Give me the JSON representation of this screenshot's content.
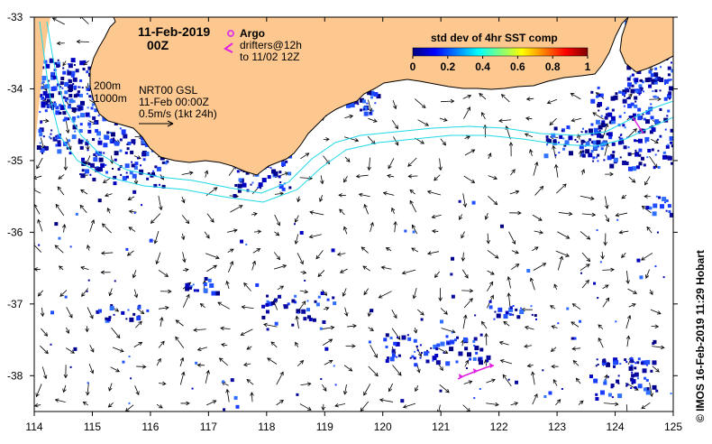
{
  "title": {
    "date": "11-Feb-2019",
    "time": "00Z"
  },
  "legend": {
    "argo_label": "Argo",
    "argo_color": "#e040e0",
    "drifters_line1": "drifters@12h",
    "drifters_line2": "to 11/02 12Z",
    "drifters_color": "#e020e0",
    "isobath_200": "200m",
    "isobath_1000": "1000m",
    "isobath_color": "#20d8e8",
    "product": "NRT00 GSL",
    "product_time": "11-Feb 00:00Z",
    "vector_scale": "0.5m/s (1kt 24h)"
  },
  "colorbar": {
    "title": "std dev of 4hr SST comp",
    "ticks": [
      "0",
      "0.2",
      "0.4",
      "0.6",
      "0.8",
      "1"
    ],
    "range": [
      0,
      1
    ],
    "colors": [
      "#00007f",
      "#0000ff",
      "#007fff",
      "#00ffff",
      "#7fff7f",
      "#ffff00",
      "#ff7f00",
      "#ff0000",
      "#7f0000"
    ]
  },
  "axes": {
    "lon_ticks": [
      "114",
      "115",
      "116",
      "117",
      "118",
      "119",
      "120",
      "121",
      "122",
      "123",
      "124",
      "125"
    ],
    "lat_ticks": [
      "-33",
      "-34",
      "-35",
      "-36",
      "-37",
      "-38"
    ],
    "lon_range": [
      114,
      125
    ],
    "lat_range": [
      -38.5,
      -33
    ]
  },
  "land_color": "#fcc890",
  "credit": "© IMOS 16-Feb-2019 11:29 Hobart"
}
